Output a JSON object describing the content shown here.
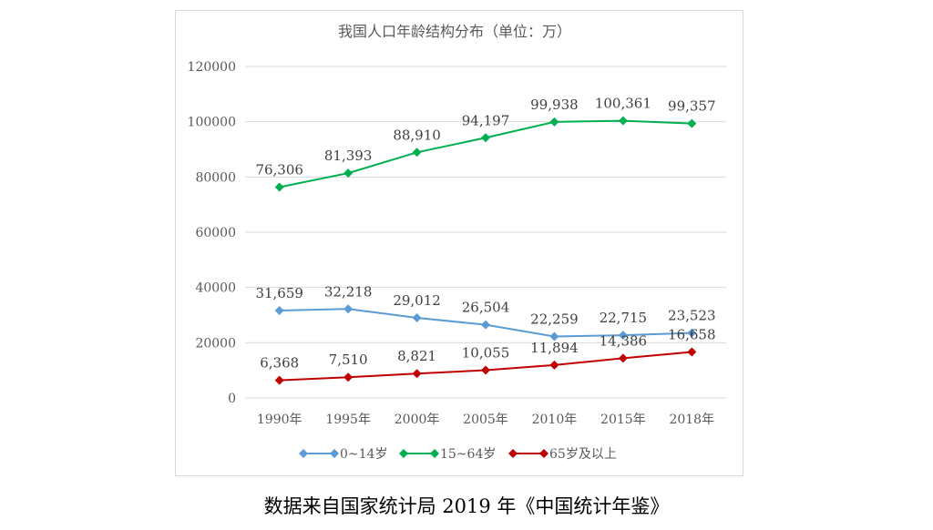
{
  "caption": "数据来自国家统计局 2019 年《中国统计年鉴》",
  "chart_data": {
    "type": "line",
    "title": "我国人口年龄结构分布（单位：万）",
    "categories": [
      "1990年",
      "1995年",
      "2000年",
      "2005年",
      "2010年",
      "2015年",
      "2018年"
    ],
    "ylim": [
      0,
      120000
    ],
    "yticks": [
      "0",
      "20000",
      "40000",
      "60000",
      "80000",
      "100000",
      "120000"
    ],
    "grid": true,
    "legend_position": "bottom",
    "series": [
      {
        "name": "0~14岁",
        "color": "#5b9bd5",
        "values": [
          31659,
          32218,
          29012,
          26504,
          22259,
          22715,
          23523
        ],
        "labels": [
          "31,659",
          "32,218",
          "29,012",
          "26,504",
          "22,259",
          "22,715",
          "23,523"
        ]
      },
      {
        "name": "15~64岁",
        "color": "#00b050",
        "values": [
          76306,
          81393,
          88910,
          94197,
          99938,
          100361,
          99357
        ],
        "labels": [
          "76,306",
          "81,393",
          "88,910",
          "94,197",
          "99,938",
          "100,361",
          "99,357"
        ]
      },
      {
        "name": "65岁及以上",
        "color": "#c00000",
        "values": [
          6368,
          7510,
          8821,
          10055,
          11894,
          14386,
          16658
        ],
        "labels": [
          "6,368",
          "7,510",
          "8,821",
          "10,055",
          "11,894",
          "14,386",
          "16,658"
        ]
      }
    ]
  }
}
